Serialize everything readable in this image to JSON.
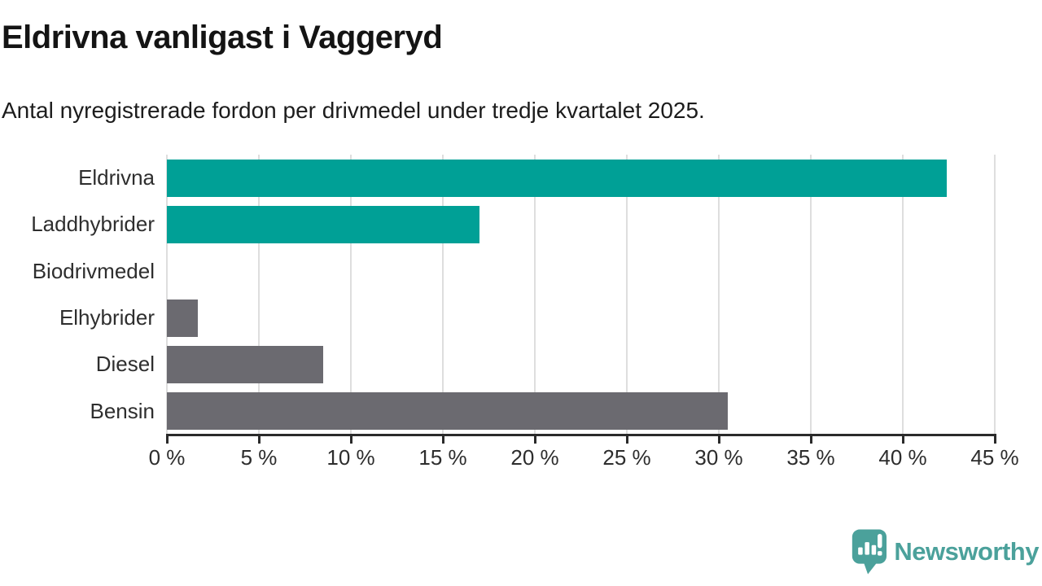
{
  "header": {
    "title": "Eldrivna vanligast i Vaggeryd",
    "subtitle": "Antal nyregistrerade fordon per drivmedel under tredje kvartalet 2025."
  },
  "chart_data": {
    "type": "bar",
    "orientation": "horizontal",
    "title": "Eldrivna vanligast i Vaggeryd",
    "subtitle": "Antal nyregistrerade fordon per drivmedel under tredje kvartalet 2025.",
    "categories": [
      "Eldrivna",
      "Laddhybrider",
      "Biodrivmedel",
      "Elhybrider",
      "Diesel",
      "Bensin"
    ],
    "values": [
      42.4,
      17.0,
      0,
      1.7,
      8.5,
      30.5
    ],
    "bar_colors": [
      "#00a096",
      "#00a096",
      "#6b6a70",
      "#6b6a70",
      "#6b6a70",
      "#6b6a70"
    ],
    "xlabel": "",
    "ylabel": "",
    "xlim": [
      0,
      45
    ],
    "x_tick_values": [
      0,
      5,
      10,
      15,
      20,
      25,
      30,
      35,
      40,
      45
    ],
    "x_tick_labels": [
      "0 %",
      "5 %",
      "10 %",
      "15 %",
      "20 %",
      "25 %",
      "30 %",
      "35 %",
      "40 %",
      "45 %"
    ],
    "grid": "vertical",
    "legend": "none"
  },
  "colors": {
    "teal_accent": "#00a096",
    "gray_bar": "#6b6a70",
    "gridline": "#dedede",
    "axis": "#2b2b2b",
    "brand_teal": "#4ba19b"
  },
  "footer": {
    "brand": "Newsworthy",
    "logo_icon": "speech-bubble-bar-chart-icon"
  }
}
